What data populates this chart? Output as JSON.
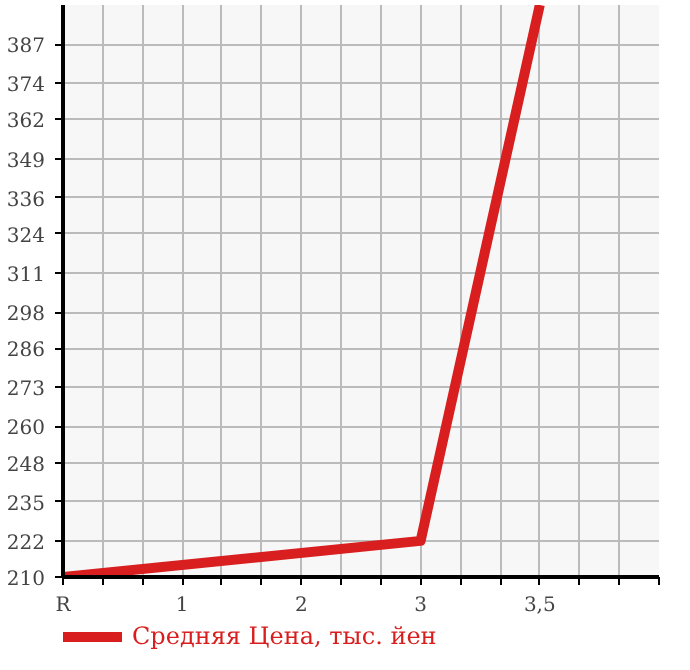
{
  "chart_data": {
    "type": "line",
    "categories": [
      "R",
      "1",
      "2",
      "3",
      "3,5",
      null
    ],
    "series": [
      {
        "name": "Средняя Цена, тыс. йен",
        "color": "#d81e1e",
        "values": [
          210,
          null,
          null,
          222,
          400,
          null
        ]
      }
    ],
    "ylim": [
      210,
      400
    ],
    "yticks": [
      210,
      222,
      235,
      248,
      260,
      273,
      286,
      298,
      311,
      324,
      336,
      349,
      362,
      374,
      387
    ],
    "grid": true,
    "legend": "bottom",
    "marker": "none",
    "line_style": "solid"
  }
}
